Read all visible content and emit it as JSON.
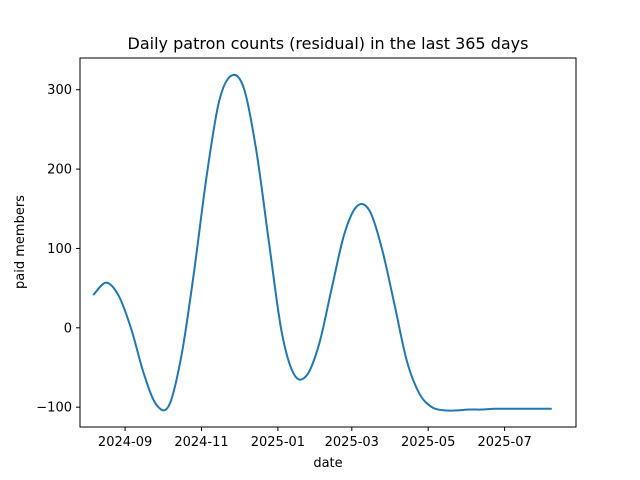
{
  "chart_data": {
    "type": "line",
    "title": "Daily patron counts (residual) in the last 365 days",
    "xlabel": "date",
    "ylabel": "paid members",
    "x_ticks": [
      "2024-09",
      "2024-11",
      "2025-01",
      "2025-03",
      "2025-05",
      "2025-07"
    ],
    "y_ticks": [
      -100,
      0,
      100,
      200,
      300
    ],
    "xlim": [
      "2024-07-27",
      "2025-08-27"
    ],
    "ylim": [
      -125,
      340
    ],
    "grid": false,
    "legend": "none",
    "series": [
      {
        "color": "#1f77b4",
        "x": [
          "2024-08-07",
          "2024-08-17",
          "2024-08-27",
          "2024-09-06",
          "2024-09-16",
          "2024-09-26",
          "2024-10-06",
          "2024-10-16",
          "2024-10-26",
          "2024-11-05",
          "2024-11-15",
          "2024-11-25",
          "2024-12-05",
          "2024-12-15",
          "2024-12-25",
          "2025-01-04",
          "2025-01-14",
          "2025-01-24",
          "2025-02-03",
          "2025-02-13",
          "2025-02-23",
          "2025-03-05",
          "2025-03-15",
          "2025-03-25",
          "2025-04-04",
          "2025-04-14",
          "2025-04-24",
          "2025-05-04",
          "2025-05-14",
          "2025-05-24",
          "2025-06-03",
          "2025-06-13",
          "2025-06-23",
          "2025-07-03",
          "2025-07-13",
          "2025-07-23",
          "2025-08-02",
          "2025-08-07"
        ],
        "y": [
          42,
          57,
          40,
          -2,
          -58,
          -97,
          -98,
          -35,
          70,
          190,
          285,
          318,
          301,
          221,
          106,
          -5,
          -59,
          -60,
          -20,
          50,
          118,
          153,
          148,
          100,
          30,
          -42,
          -83,
          -100,
          -104,
          -104,
          -103,
          -103,
          -102,
          -102,
          -102,
          -102,
          -102,
          -102
        ]
      }
    ]
  }
}
